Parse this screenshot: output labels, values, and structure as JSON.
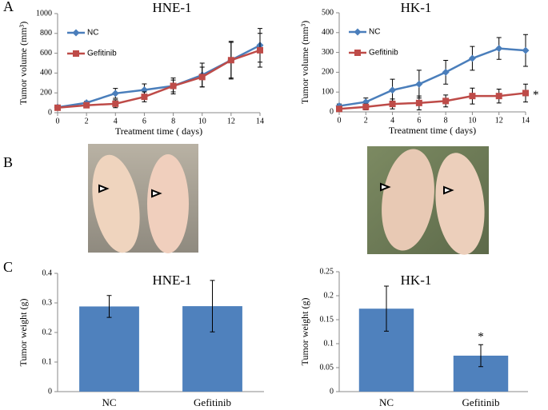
{
  "panel_labels": [
    "A",
    "B",
    "C"
  ],
  "chart_data": [
    {
      "type": "line",
      "title": "HNE-1",
      "xlabel": "Treatment  time ( days)",
      "ylabel": "Tumor  volume  (mm³)",
      "x": [
        0,
        2,
        4,
        6,
        8,
        10,
        12,
        14
      ],
      "xlim": [
        0,
        14
      ],
      "xticks": [
        0,
        2,
        4,
        6,
        8,
        10,
        12,
        14
      ],
      "ylim": [
        0,
        1000
      ],
      "yticks": [
        0,
        200,
        400,
        600,
        800,
        1000
      ],
      "series": [
        {
          "name": "NC",
          "color": "#4a7ebb",
          "marker": "diamond",
          "values": [
            55,
            100,
            195,
            230,
            270,
            380,
            530,
            680
          ],
          "errors": [
            10,
            15,
            50,
            60,
            60,
            120,
            180,
            170
          ]
        },
        {
          "name": "Gefitinib",
          "color": "#be4b48",
          "marker": "square",
          "values": [
            50,
            75,
            90,
            160,
            270,
            360,
            530,
            630
          ],
          "errors": [
            10,
            20,
            40,
            50,
            80,
            100,
            190,
            170
          ]
        }
      ]
    },
    {
      "type": "line",
      "title": "HK-1",
      "xlabel": "Treatment  time ( days)",
      "ylabel": "Tumor  volume  (mm³)",
      "x": [
        0,
        2,
        4,
        6,
        8,
        10,
        12,
        14
      ],
      "xlim": [
        0,
        14
      ],
      "xticks": [
        0,
        2,
        4,
        6,
        8,
        10,
        12,
        14
      ],
      "ylim": [
        0,
        500
      ],
      "yticks": [
        0,
        100,
        200,
        300,
        400,
        500
      ],
      "annotation": "*",
      "series": [
        {
          "name": "NC",
          "color": "#4a7ebb",
          "marker": "diamond",
          "values": [
            30,
            50,
            110,
            140,
            200,
            270,
            320,
            310
          ],
          "errors": [
            10,
            20,
            55,
            70,
            60,
            60,
            55,
            80
          ]
        },
        {
          "name": "Gefitinib",
          "color": "#be4b48",
          "marker": "square",
          "values": [
            15,
            25,
            40,
            45,
            55,
            80,
            80,
            95
          ],
          "errors": [
            10,
            15,
            25,
            35,
            30,
            40,
            35,
            45
          ]
        }
      ]
    },
    {
      "type": "bar",
      "title": "HNE-1",
      "ylabel": "Tumor  weight  (g)",
      "categories": [
        "NC",
        "Gefitinib"
      ],
      "values": [
        0.288,
        0.289
      ],
      "errors": [
        0.037,
        0.087
      ],
      "color": "#4f81bd",
      "ylim": [
        0,
        0.4
      ],
      "yticks": [
        0,
        0.1,
        0.2,
        0.3,
        0.4
      ]
    },
    {
      "type": "bar",
      "title": "HK-1",
      "ylabel": "Tumor  weight  (g)",
      "categories": [
        "NC",
        "Gefitinib"
      ],
      "values": [
        0.173,
        0.075
      ],
      "errors": [
        0.047,
        0.023
      ],
      "color": "#4f81bd",
      "annotation": "*",
      "ylim": [
        0,
        0.25
      ],
      "yticks": [
        0,
        0.05,
        0.1,
        0.15,
        0.2,
        0.25
      ]
    }
  ]
}
